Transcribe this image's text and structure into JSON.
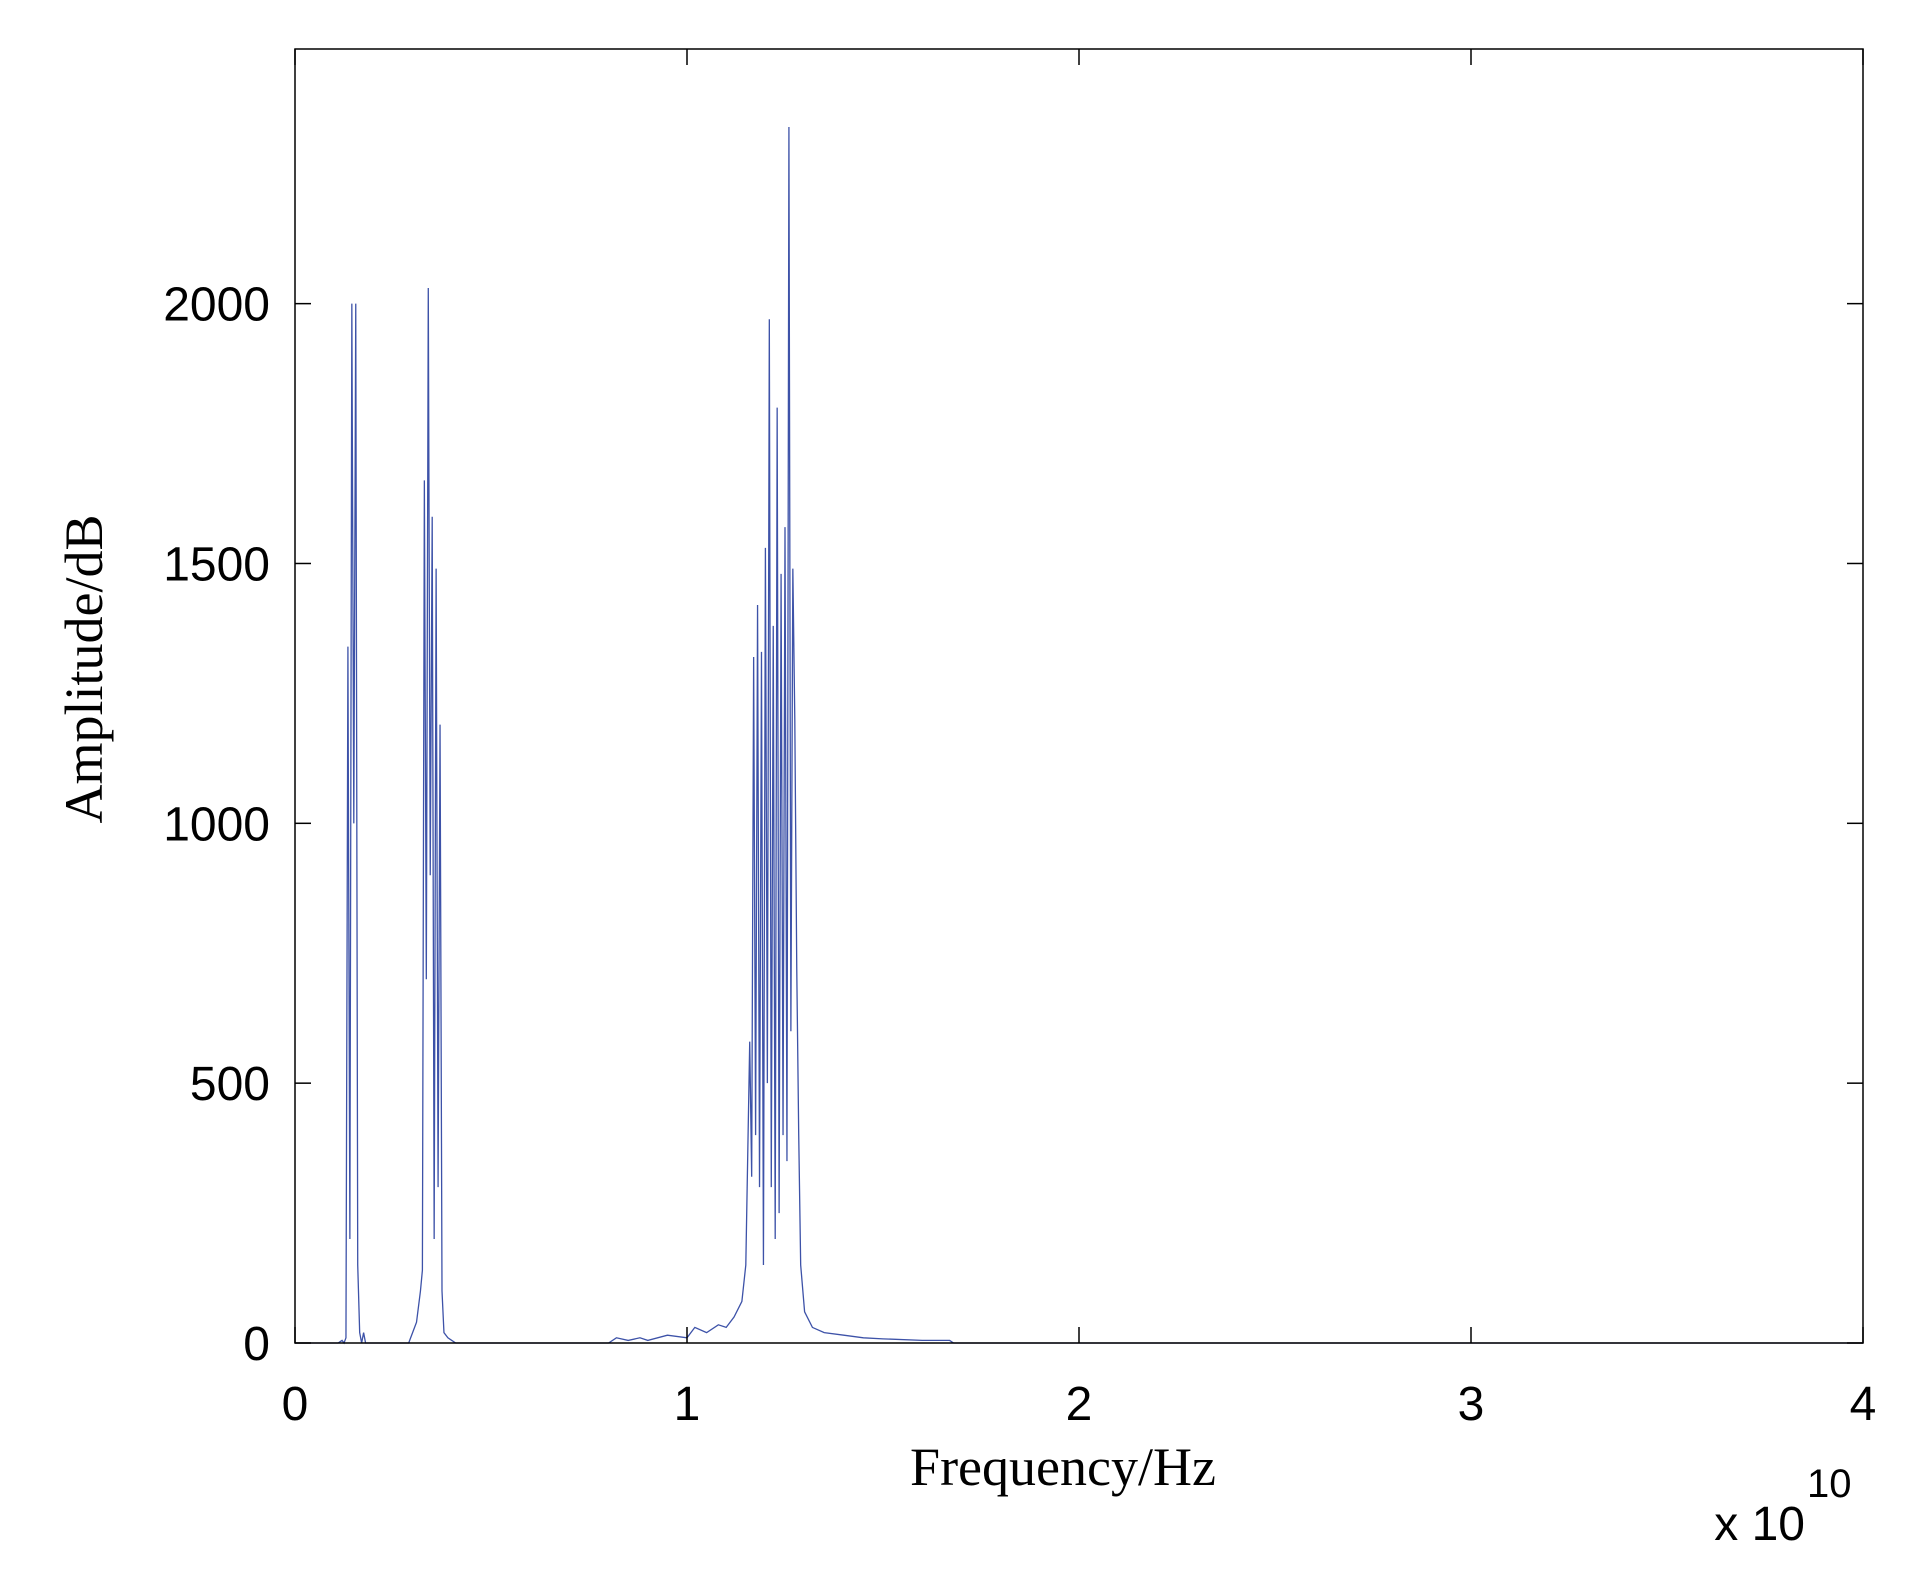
{
  "chart_data": {
    "type": "line",
    "xlabel": "Frequency/Hz",
    "ylabel": "Amplitude/dB",
    "x_multiplier": {
      "base": "x 10",
      "exponent": "10"
    },
    "x": [
      0,
      0.11,
      0.12,
      0.125,
      0.13,
      0.135,
      0.14,
      0.145,
      0.15,
      0.155,
      0.16,
      0.165,
      0.17,
      0.175,
      0.18,
      0.29,
      0.3,
      0.31,
      0.32,
      0.325,
      0.33,
      0.335,
      0.34,
      0.345,
      0.35,
      0.355,
      0.36,
      0.365,
      0.37,
      0.375,
      0.38,
      0.39,
      0.4,
      0.41,
      0.8,
      0.82,
      0.85,
      0.88,
      0.9,
      0.95,
      1.0,
      1.02,
      1.05,
      1.08,
      1.1,
      1.12,
      1.14,
      1.15,
      1.16,
      1.165,
      1.17,
      1.175,
      1.18,
      1.185,
      1.19,
      1.195,
      1.2,
      1.205,
      1.21,
      1.215,
      1.22,
      1.225,
      1.23,
      1.235,
      1.24,
      1.245,
      1.25,
      1.255,
      1.26,
      1.265,
      1.27,
      1.275,
      1.28,
      1.285,
      1.29,
      1.3,
      1.32,
      1.35,
      1.4,
      1.45,
      1.5,
      1.6,
      1.67,
      1.68,
      4
    ],
    "values": [
      0,
      0,
      5,
      0,
      10,
      1340,
      200,
      2000,
      1000,
      2000,
      150,
      20,
      0,
      20,
      0,
      0,
      20,
      40,
      100,
      140,
      1660,
      700,
      2030,
      900,
      1590,
      200,
      1490,
      300,
      1190,
      100,
      20,
      10,
      5,
      0,
      0,
      10,
      5,
      10,
      5,
      15,
      10,
      30,
      20,
      35,
      30,
      50,
      80,
      150,
      580,
      320,
      1320,
      400,
      1420,
      300,
      1330,
      150,
      1530,
      500,
      1970,
      300,
      1380,
      200,
      1800,
      250,
      1480,
      400,
      1570,
      350,
      2340,
      600,
      1490,
      1200,
      720,
      400,
      150,
      60,
      30,
      20,
      15,
      10,
      8,
      5,
      5,
      0,
      0
    ],
    "color": "#3d52a8",
    "xlim": [
      0,
      4
    ],
    "xticks": [
      0,
      1,
      2,
      3,
      4
    ],
    "ylim": [
      0,
      2490
    ],
    "yticks": [
      0,
      500,
      1000,
      1500,
      2000
    ],
    "grid": false
  }
}
